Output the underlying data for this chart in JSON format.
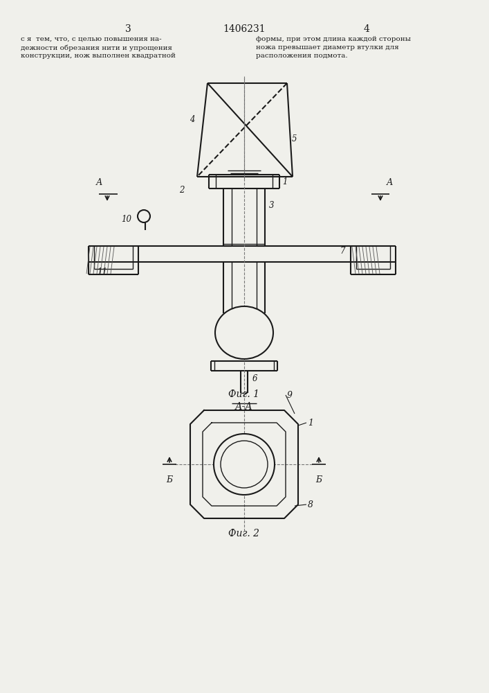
{
  "bg_color": "#f0f0eb",
  "line_color": "#1a1a1a",
  "title_text": "1406231",
  "page_left": "3",
  "page_right": "4",
  "text_left": "с я  тем, что, с целью повышения на-\nдежности обрезания нити и упрощения\nконструкции, нож выполнен квадратной",
  "text_right": "формы, при этом длина каждой стороны\nножа превышает диаметр втулки для\nрасположения подмота.",
  "fig1_caption": "Фиг. 1",
  "fig2_caption": "Фиг. 2",
  "fig2_title": "А-А"
}
